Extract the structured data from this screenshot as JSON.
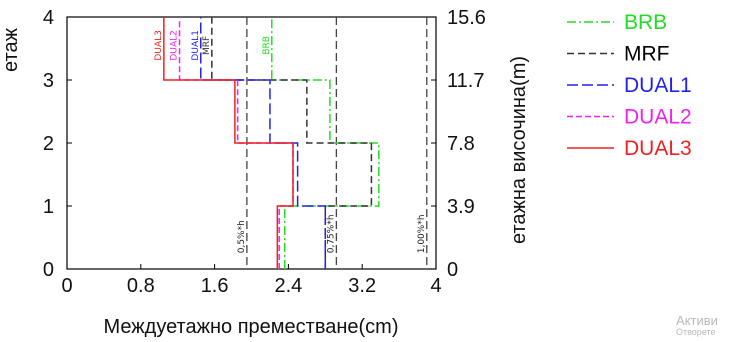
{
  "chart_data": {
    "type": "line",
    "subtype": "step",
    "xlabel": "Междуетажно преместване(cm)",
    "ylabel": "етаж",
    "y2label": "етажна височина(m)",
    "xlim": [
      0,
      4
    ],
    "ylim": [
      0,
      4
    ],
    "x_ticks": [
      "0",
      "0.8",
      "1.6",
      "2.4",
      "3.2",
      "4"
    ],
    "x_tick_values": [
      0,
      0.8,
      1.6,
      2.4,
      3.2,
      4
    ],
    "y_ticks": [
      "0",
      "1",
      "2",
      "3",
      "4"
    ],
    "y_tick_values": [
      0,
      1,
      2,
      3,
      4
    ],
    "y2_ticks": [
      "0",
      "3.9",
      "7.8",
      "11.7",
      "15.6"
    ],
    "grid": false,
    "legend_position": "right",
    "series": [
      {
        "name": "BRB",
        "color": "#22dd22",
        "dash": "9 3 2 3",
        "values": [
          2.36,
          3.38,
          2.85,
          2.22
        ]
      },
      {
        "name": "MRF",
        "color": "#333333",
        "dash": "7 4",
        "values": [
          2.8,
          3.3,
          2.6,
          1.57
        ]
      },
      {
        "name": "DUAL1",
        "color": "#2222ee",
        "dash": "11 4",
        "values": [
          2.8,
          2.5,
          2.2,
          1.45
        ]
      },
      {
        "name": "DUAL2",
        "color": "#ee22ee",
        "dash": "6 3",
        "values": [
          2.3,
          2.45,
          1.85,
          1.22
        ]
      },
      {
        "name": "DUAL3",
        "color": "#ee2222",
        "dash": "",
        "values": [
          2.28,
          2.45,
          1.82,
          1.05
        ]
      }
    ],
    "limit_lines": [
      {
        "label": "0,5%*h",
        "x": 1.95
      },
      {
        "label": "0,75%*h",
        "x": 2.92
      },
      {
        "label": "1,00%*h",
        "x": 3.9
      }
    ],
    "top_labels": [
      {
        "text": "DUAL3",
        "series": "DUAL3"
      },
      {
        "text": "DUAL2",
        "series": "DUAL2"
      },
      {
        "text": "DUAL1",
        "series": "DUAL1"
      },
      {
        "text": "MRF",
        "series": "MRF"
      },
      {
        "text": "BRB",
        "series": "BRB"
      }
    ]
  },
  "watermark": {
    "line1": "Активи",
    "line2": "Отворете"
  }
}
